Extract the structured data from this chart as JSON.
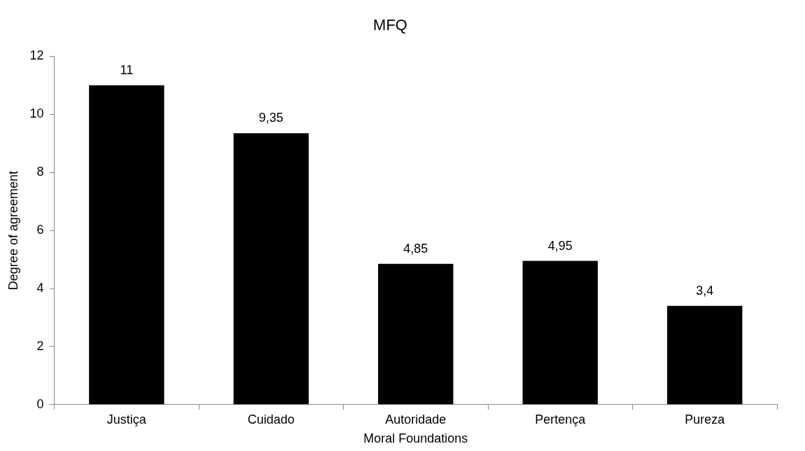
{
  "chart_data": {
    "type": "bar",
    "title": "MFQ",
    "xlabel": "Moral Foundations",
    "ylabel": "Degree of agreement",
    "categories": [
      "Justiça",
      "Cuidado",
      "Autoridade",
      "Pertença",
      "Pureza"
    ],
    "values": [
      11,
      9.35,
      4.85,
      4.95,
      3.4
    ],
    "value_labels": [
      "11",
      "9,35",
      "4,85",
      "4,95",
      "3,4"
    ],
    "color": "#000000",
    "ylim": [
      0,
      12
    ],
    "yticks": [
      0,
      2,
      4,
      6,
      8,
      10,
      12
    ],
    "grid": false,
    "legend": false
  }
}
